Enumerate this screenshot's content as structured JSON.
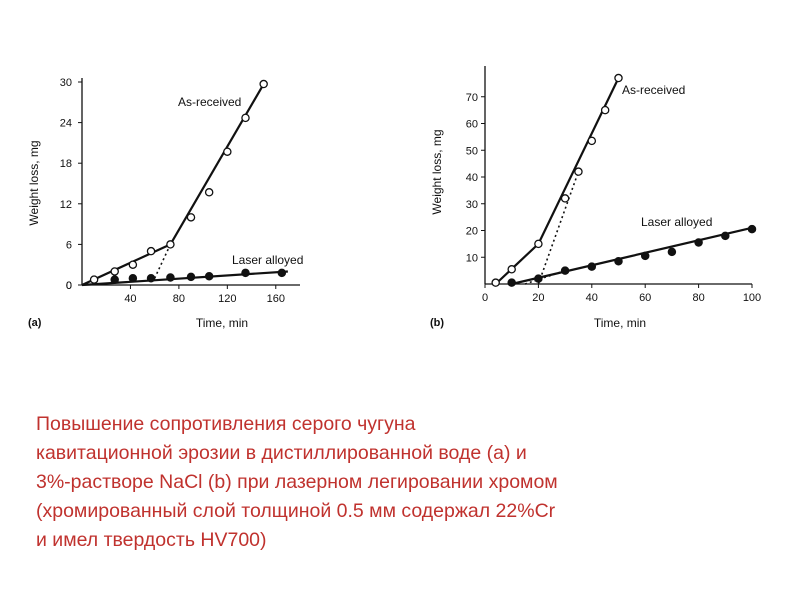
{
  "chart_data": [
    {
      "type": "line",
      "panel_label": "(a)",
      "xlabel": "Time, min",
      "ylabel": "Weight loss, mg",
      "xlim": [
        0,
        180
      ],
      "ylim": [
        0,
        30
      ],
      "xticks": [
        40,
        80,
        120,
        160
      ],
      "yticks": [
        0,
        6,
        12,
        18,
        24,
        30
      ],
      "grid": false,
      "series": [
        {
          "name": "As-received",
          "marker": "open-circle",
          "x": [
            10,
            27,
            42,
            57,
            73,
            90,
            105,
            120,
            135,
            150
          ],
          "y": [
            0.8,
            2,
            3,
            5,
            6,
            10,
            13.7,
            19.7,
            24.7,
            29.7
          ],
          "fit_lines": [
            {
              "style": "solid",
              "x": [
                0,
                73
              ],
              "y": [
                0,
                6
              ]
            },
            {
              "style": "solid",
              "x": [
                73,
                150
              ],
              "y": [
                6,
                29.7
              ]
            },
            {
              "style": "dotted",
              "x": [
                60,
                73
              ],
              "y": [
                1,
                6
              ]
            }
          ]
        },
        {
          "name": "Laser alloyed",
          "marker": "filled-circle",
          "x": [
            27,
            42,
            57,
            73,
            90,
            105,
            135,
            165
          ],
          "y": [
            0.8,
            1,
            1,
            1.1,
            1.2,
            1.3,
            1.8,
            1.8
          ],
          "fit_lines": [
            {
              "style": "solid",
              "x": [
                0,
                170
              ],
              "y": [
                0,
                2
              ]
            }
          ]
        }
      ]
    },
    {
      "type": "line",
      "panel_label": "(b)",
      "xlabel": "Time, min",
      "ylabel": "Weight loss, mg",
      "xlim": [
        0,
        100
      ],
      "ylim": [
        0,
        80
      ],
      "xticks": [
        0,
        20,
        40,
        60,
        80,
        100
      ],
      "yticks": [
        10,
        20,
        30,
        40,
        50,
        60,
        70
      ],
      "grid": false,
      "series": [
        {
          "name": "As-received",
          "marker": "open-circle",
          "x": [
            4,
            10,
            20,
            30,
            35,
            40,
            45,
            50
          ],
          "y": [
            0.5,
            5.5,
            15,
            32,
            42,
            53.5,
            65,
            77
          ],
          "fit_lines": [
            {
              "style": "solid",
              "x": [
                4,
                20
              ],
              "y": [
                0,
                15
              ]
            },
            {
              "style": "solid",
              "x": [
                20,
                50
              ],
              "y": [
                15,
                77
              ]
            },
            {
              "style": "dotted",
              "x": [
                20,
                35
              ],
              "y": [
                0,
                42
              ]
            }
          ]
        },
        {
          "name": "Laser alloyed",
          "marker": "filled-circle",
          "x": [
            10,
            20,
            30,
            40,
            50,
            60,
            70,
            80,
            90,
            100
          ],
          "y": [
            0.5,
            2,
            5,
            6.5,
            8.5,
            10.5,
            12,
            15.5,
            18,
            20.5
          ],
          "fit_lines": [
            {
              "style": "solid",
              "x": [
                10,
                100
              ],
              "y": [
                0,
                21
              ]
            },
            {
              "style": "dotted",
              "x": [
                15,
                30
              ],
              "y": [
                0,
                5
              ]
            }
          ]
        }
      ]
    }
  ],
  "caption": {
    "lines": [
      "Повышение  сопротивления  серого чугуна",
      "кавитационной эрозии в дистиллированной воде (а) и",
      "3%-растворе NaCl (b) при лазерном легировании хромом",
      "(хромированный слой толщиной 0.5 мм содержал 22%Cr",
      "и имел твердость HV700)"
    ]
  }
}
